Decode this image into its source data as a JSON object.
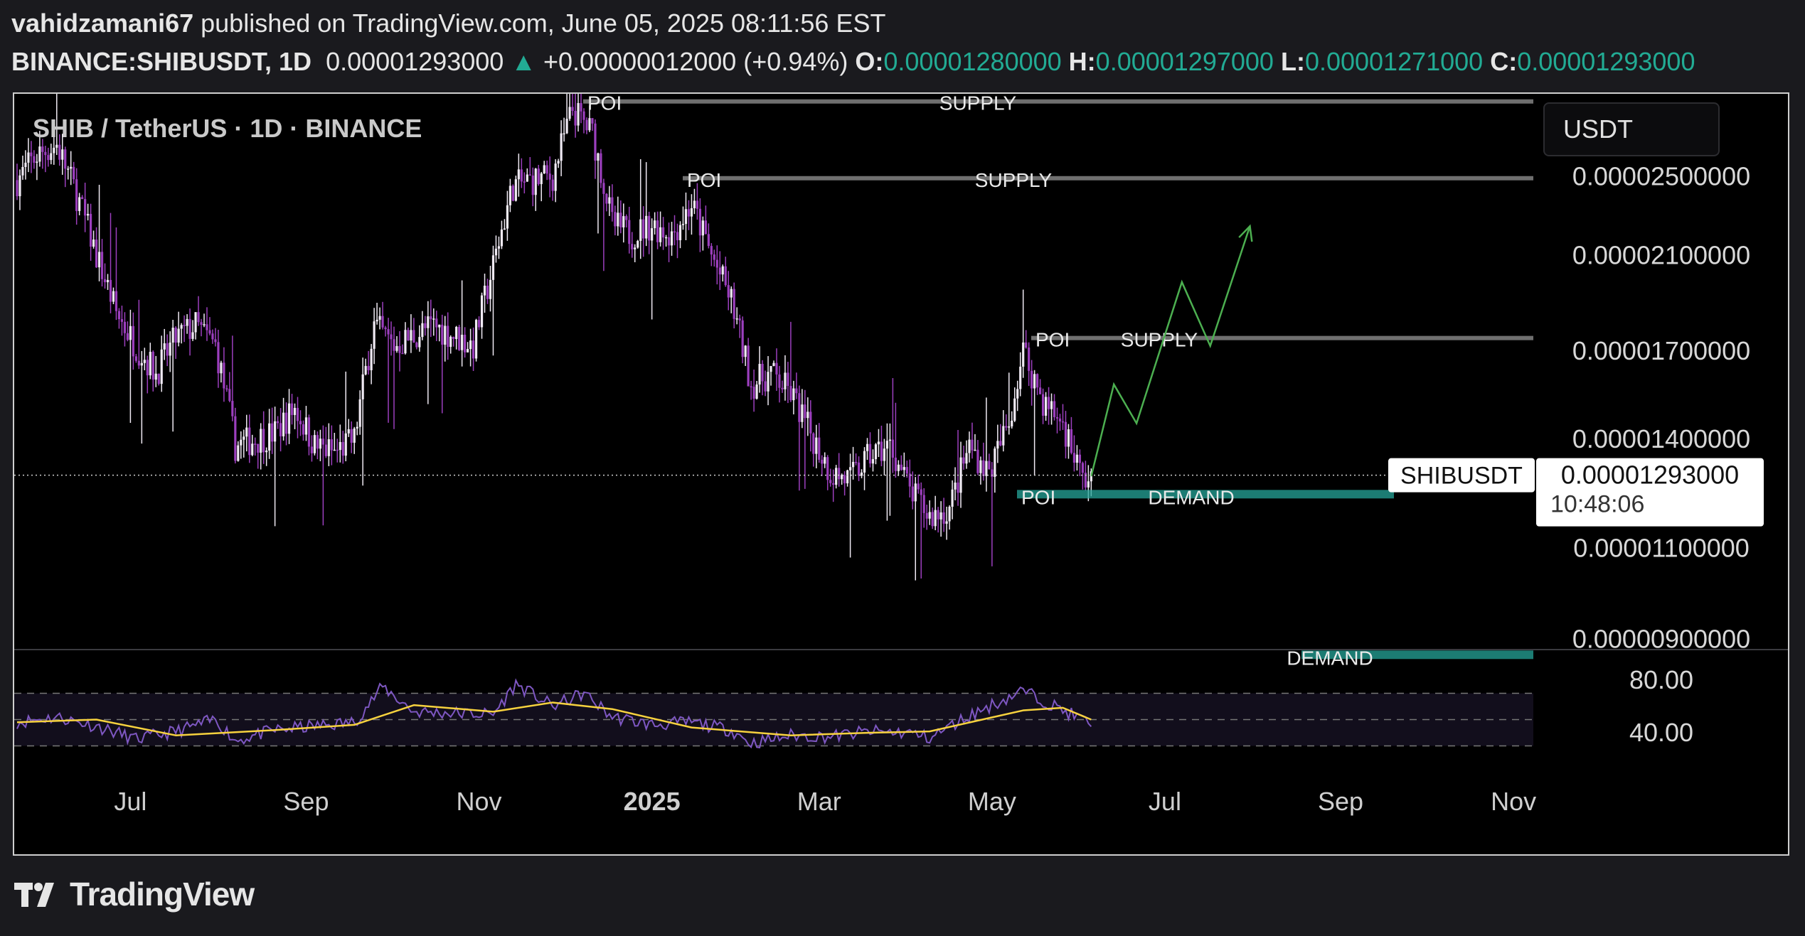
{
  "header": {
    "author": "vahidzamani67",
    "published_text": " published on TradingView.com, June 05, 2025 08:11:56 EST",
    "symbol": "BINANCE:SHIBUSDT, 1D",
    "price": "0.00001293000",
    "change": "+0.00000012000 (+0.94%)",
    "open_label": "O:",
    "open": "0.00001280000",
    "high_label": "H:",
    "high": "0.00001297000",
    "low_label": "L:",
    "low": "0.00001271000",
    "close_label": "C:",
    "close": "0.00001293000"
  },
  "chart": {
    "title": "SHIB / TetherUS · 1D · BINANCE",
    "currency": "USDT",
    "price_ticks": [
      "0.00002500000",
      "0.00002100000",
      "0.00001700000",
      "0.00001400000",
      "0.00001100000",
      "0.00000900000"
    ],
    "last_price_symbol": "SHIBUSDT",
    "last_price_value": "0.00001293000",
    "countdown": "10:48:06",
    "rsi_ticks": [
      "80.00",
      "40.00"
    ],
    "x_ticks": [
      "Jul",
      "Sep",
      "Nov",
      "2025",
      "Mar",
      "May",
      "Jul",
      "Sep",
      "Nov"
    ],
    "zones": [
      {
        "poi": "POI",
        "name": "SUPPLY",
        "level": 2.95e-05
      },
      {
        "poi": "POI",
        "name": "SUPPLY",
        "level": 2.49e-05
      },
      {
        "poi": "POI",
        "name": "SUPPLY",
        "level": 1.75e-05
      },
      {
        "poi": "POI",
        "name": "DEMAND",
        "level": 1.24e-05
      },
      {
        "poi": "",
        "name": "DEMAND",
        "level": 8.7e-06
      }
    ],
    "colors": {
      "candle": "#9c3fbe",
      "candle_light": "#f0eaf4",
      "rsi": "#7e57c2",
      "rsi_ma": "#f7d23e",
      "projection": "#4caf50",
      "demand": "#26a69a",
      "supply": "#6f6f6f"
    }
  },
  "chart_data": {
    "type": "candlestick",
    "title": "SHIB / TetherUS · 1D · BINANCE",
    "y_scale": "log",
    "ylim": [
      8.8e-06,
      3e-05
    ],
    "x_range": [
      "2024-05-21",
      "2025-11-08"
    ],
    "price_path": [
      [
        "2024-05-22",
        2.48e-05
      ],
      [
        "2024-05-29",
        2.62e-05
      ],
      [
        "2024-06-05",
        2.68e-05
      ],
      [
        "2024-06-12",
        2.4e-05
      ],
      [
        "2024-06-19",
        2.1e-05
      ],
      [
        "2024-06-26",
        1.85e-05
      ],
      [
        "2024-07-03",
        1.72e-05
      ],
      [
        "2024-07-10",
        1.62e-05
      ],
      [
        "2024-07-17",
        1.75e-05
      ],
      [
        "2024-07-24",
        1.8e-05
      ],
      [
        "2024-07-31",
        1.72e-05
      ],
      [
        "2024-08-07",
        1.38e-05
      ],
      [
        "2024-08-14",
        1.4e-05
      ],
      [
        "2024-08-21",
        1.42e-05
      ],
      [
        "2024-08-28",
        1.5e-05
      ],
      [
        "2024-09-04",
        1.38e-05
      ],
      [
        "2024-09-11",
        1.36e-05
      ],
      [
        "2024-09-18",
        1.4e-05
      ],
      [
        "2024-09-25",
        1.8e-05
      ],
      [
        "2024-10-02",
        1.72e-05
      ],
      [
        "2024-10-09",
        1.76e-05
      ],
      [
        "2024-10-16",
        1.8e-05
      ],
      [
        "2024-10-23",
        1.76e-05
      ],
      [
        "2024-10-30",
        1.72e-05
      ],
      [
        "2024-11-06",
        2.05e-05
      ],
      [
        "2024-11-13",
        2.45e-05
      ],
      [
        "2024-11-20",
        2.48e-05
      ],
      [
        "2024-11-27",
        2.5e-05
      ],
      [
        "2024-12-04",
        2.9e-05
      ],
      [
        "2024-12-11",
        2.75e-05
      ],
      [
        "2024-12-18",
        2.25e-05
      ],
      [
        "2024-12-25",
        2.2e-05
      ],
      [
        "2025-01-01",
        2.25e-05
      ],
      [
        "2025-01-08",
        2.2e-05
      ],
      [
        "2025-01-15",
        2.35e-05
      ],
      [
        "2025-01-22",
        2.1e-05
      ],
      [
        "2025-01-29",
        1.9e-05
      ],
      [
        "2025-02-05",
        1.58e-05
      ],
      [
        "2025-02-12",
        1.62e-05
      ],
      [
        "2025-02-19",
        1.55e-05
      ],
      [
        "2025-02-26",
        1.42e-05
      ],
      [
        "2025-03-05",
        1.3e-05
      ],
      [
        "2025-03-12",
        1.28e-05
      ],
      [
        "2025-03-19",
        1.35e-05
      ],
      [
        "2025-03-26",
        1.38e-05
      ],
      [
        "2025-04-02",
        1.25e-05
      ],
      [
        "2025-04-09",
        1.18e-05
      ],
      [
        "2025-04-16",
        1.2e-05
      ],
      [
        "2025-04-23",
        1.38e-05
      ],
      [
        "2025-04-30",
        1.3e-05
      ],
      [
        "2025-05-07",
        1.45e-05
      ],
      [
        "2025-05-12",
        1.7e-05
      ],
      [
        "2025-05-19",
        1.52e-05
      ],
      [
        "2025-05-26",
        1.45e-05
      ],
      [
        "2025-06-02",
        1.28e-05
      ],
      [
        "2025-06-05",
        1.29e-05
      ]
    ],
    "last_price": 1.293e-05,
    "projection_path": [
      [
        "2025-06-05",
        1.29e-05
      ],
      [
        "2025-06-13",
        1.58e-05
      ],
      [
        "2025-06-21",
        1.45e-05
      ],
      [
        "2025-07-07",
        1.98e-05
      ],
      [
        "2025-07-17",
        1.72e-05
      ],
      [
        "2025-07-31",
        2.24e-05
      ]
    ],
    "rsi": {
      "ylim": [
        20,
        100
      ],
      "levels": [
        30,
        50,
        70
      ],
      "path": [
        [
          "2024-05-22",
          48
        ],
        [
          "2024-06-05",
          52
        ],
        [
          "2024-06-19",
          45
        ],
        [
          "2024-07-03",
          35
        ],
        [
          "2024-07-17",
          41
        ],
        [
          "2024-07-31",
          50
        ],
        [
          "2024-08-07",
          34
        ],
        [
          "2024-08-21",
          42
        ],
        [
          "2024-09-04",
          45
        ],
        [
          "2024-09-18",
          48
        ],
        [
          "2024-09-28",
          75
        ],
        [
          "2024-10-09",
          56
        ],
        [
          "2024-10-23",
          55
        ],
        [
          "2024-11-06",
          54
        ],
        [
          "2024-11-14",
          77
        ],
        [
          "2024-11-27",
          60
        ],
        [
          "2024-12-08",
          70
        ],
        [
          "2024-12-18",
          52
        ],
        [
          "2025-01-01",
          46
        ],
        [
          "2025-01-15",
          48
        ],
        [
          "2025-01-29",
          42
        ],
        [
          "2025-02-05",
          32
        ],
        [
          "2025-02-19",
          38
        ],
        [
          "2025-03-05",
          37
        ],
        [
          "2025-03-19",
          41
        ],
        [
          "2025-04-02",
          40
        ],
        [
          "2025-04-09",
          36
        ],
        [
          "2025-04-23",
          53
        ],
        [
          "2025-05-12",
          72
        ],
        [
          "2025-05-26",
          57
        ],
        [
          "2025-06-05",
          47
        ]
      ],
      "ma_path": [
        [
          "2024-05-22",
          48
        ],
        [
          "2024-06-19",
          50
        ],
        [
          "2024-07-17",
          38
        ],
        [
          "2024-08-21",
          42
        ],
        [
          "2024-09-18",
          46
        ],
        [
          "2024-10-09",
          61
        ],
        [
          "2024-11-06",
          56
        ],
        [
          "2024-11-27",
          63
        ],
        [
          "2024-12-18",
          58
        ],
        [
          "2025-01-15",
          44
        ],
        [
          "2025-02-19",
          38
        ],
        [
          "2025-03-19",
          40
        ],
        [
          "2025-04-09",
          41
        ],
        [
          "2025-05-12",
          57
        ],
        [
          "2025-05-26",
          59
        ],
        [
          "2025-06-05",
          50
        ]
      ]
    }
  }
}
